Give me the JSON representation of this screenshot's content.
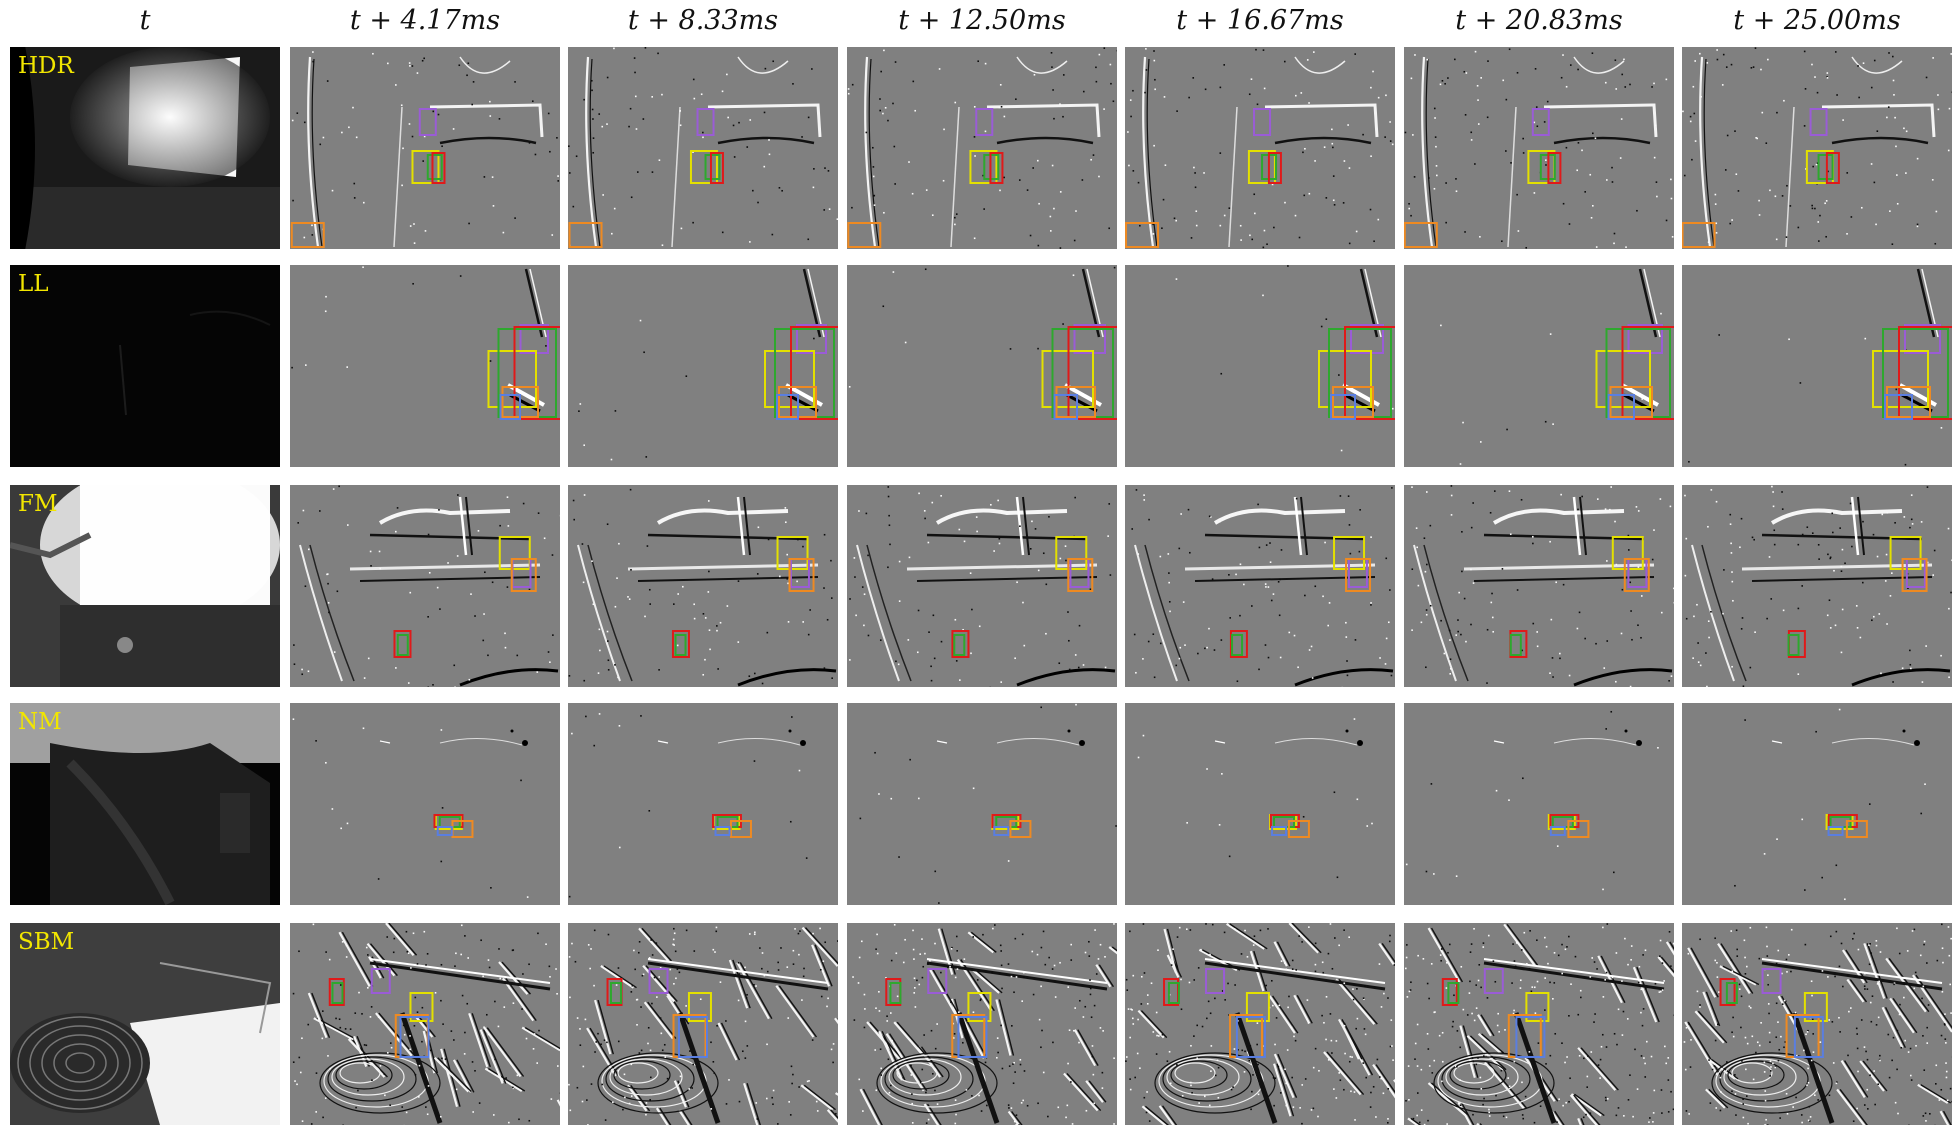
{
  "headers": [
    "t",
    "t + 4.17ms",
    "t + 8.33ms",
    "t + 12.50ms",
    "t + 16.67ms",
    "t + 20.83ms",
    "t + 25.00ms"
  ],
  "rows": [
    {
      "label": "HDR"
    },
    {
      "label": "LL"
    },
    {
      "label": "FM"
    },
    {
      "label": "NM"
    },
    {
      "label": "SBM"
    }
  ],
  "colors": {
    "event_background": "#808080",
    "box_purple": "#9a5cd6",
    "box_yellow": "#e3e000",
    "box_green": "#2ea82e",
    "box_red": "#e01a1a",
    "box_orange": "#ee8a22",
    "box_blue": "#5a7ee0",
    "label_yellow": "#f2e600"
  }
}
